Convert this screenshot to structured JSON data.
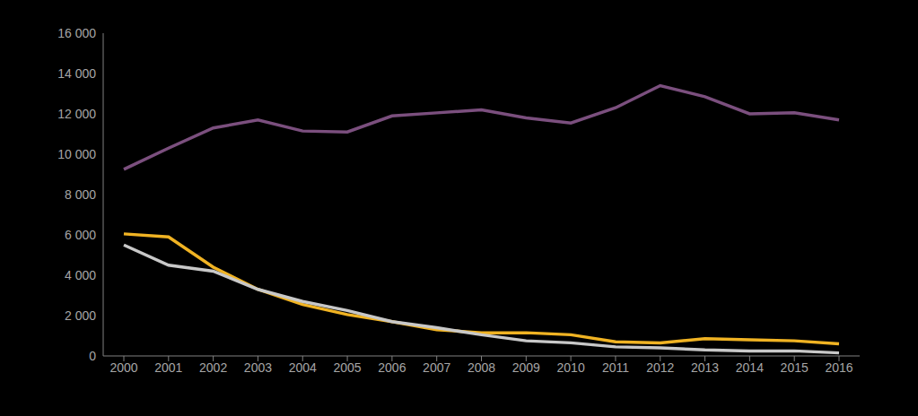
{
  "chart_data": {
    "type": "line",
    "categories": [
      "2000",
      "2001",
      "2002",
      "2003",
      "2004",
      "2005",
      "2006",
      "2007",
      "2008",
      "2009",
      "2010",
      "2011",
      "2012",
      "2013",
      "2014",
      "2015",
      "2016"
    ],
    "series": [
      {
        "color": "#7b4f7e",
        "values": [
          9250,
          10300,
          11300,
          11700,
          11150,
          11100,
          11900,
          12050,
          12200,
          11800,
          11550,
          12300,
          13400,
          12850,
          12000,
          12050,
          11700
        ]
      },
      {
        "color": "#f0b323",
        "values": [
          6050,
          5900,
          4400,
          3300,
          2550,
          2050,
          1700,
          1300,
          1150,
          1150,
          1050,
          700,
          650,
          850,
          800,
          750,
          600
        ]
      },
      {
        "color": "#c8c8c8",
        "values": [
          5500,
          4500,
          4200,
          3300,
          2700,
          2250,
          1700,
          1400,
          1050,
          750,
          650,
          450,
          400,
          300,
          250,
          250,
          150
        ]
      }
    ],
    "ylim": [
      0,
      16000
    ],
    "yticks": [
      0,
      {
        "value": 2000,
        "label": "2 000"
      },
      {
        "value": 4000,
        "label": "4 000"
      },
      {
        "value": 6000,
        "label": "6 000"
      },
      {
        "value": 8000,
        "label": "8 000"
      },
      {
        "value": 10000,
        "label": "10 000"
      },
      {
        "value": 12000,
        "label": "12 000"
      },
      {
        "value": 14000,
        "label": "14 000"
      },
      {
        "value": 16000,
        "label": "16 000"
      }
    ],
    "grid": false
  }
}
